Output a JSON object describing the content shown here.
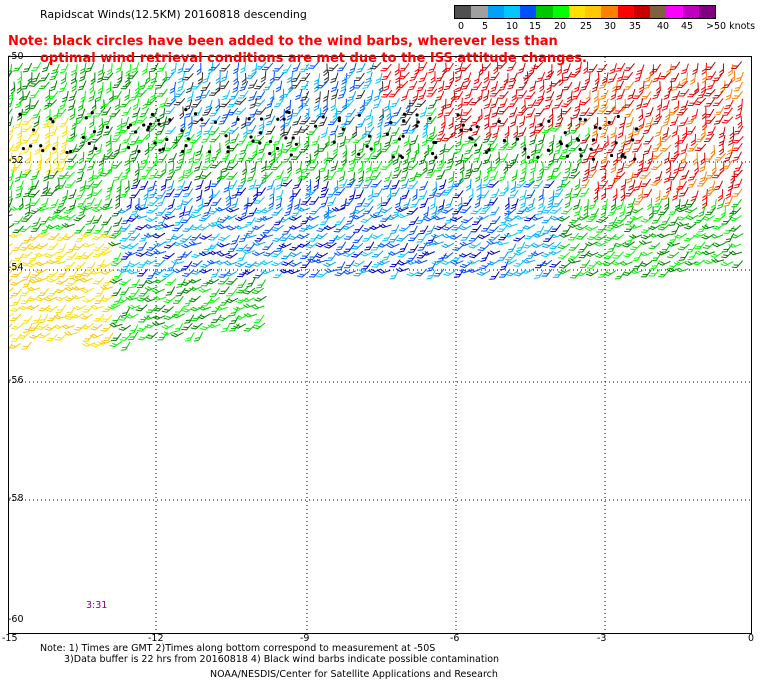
{
  "title": "Rapidscat Winds(12.5KM) 20160818 descending",
  "note": {
    "line1": "Note: black circles have been added to the wind barbs, wherever less than",
    "line2": "optimal wind retrieval conditions are met due to the ISS attitude changes."
  },
  "color_scale": {
    "colors": [
      "#505050",
      "#a0a0a0",
      "#00a0ff",
      "#00c8ff",
      "#0050ff",
      "#00c800",
      "#00ff00",
      "#ffe000",
      "#ffc800",
      "#ff8000",
      "#ff0000",
      "#c80000",
      "#806040",
      "#ff00ff",
      "#c000c0",
      "#800080"
    ],
    "labels": [
      {
        "text": "0",
        "pos": 4
      },
      {
        "text": "5",
        "pos": 28
      },
      {
        "text": "10",
        "pos": 52
      },
      {
        "text": "15",
        "pos": 75
      },
      {
        "text": "20",
        "pos": 100
      },
      {
        "text": "25",
        "pos": 126
      },
      {
        "text": "30",
        "pos": 150
      },
      {
        "text": "35",
        "pos": 175
      },
      {
        "text": "40",
        "pos": 203
      },
      {
        "text": "45",
        "pos": 227
      },
      {
        "text": ">50 knots",
        "pos": 252
      }
    ]
  },
  "axes": {
    "y_labels": [
      "-50",
      "-52",
      "-54",
      "-56",
      "-58",
      "-60"
    ],
    "x_labels": [
      "-15",
      "-12",
      "-9",
      "-6",
      "-3",
      "0"
    ],
    "lat_range": [
      -60,
      -50
    ],
    "lon_range": [
      -15,
      0
    ]
  },
  "time_tag": "3:31",
  "footer": {
    "line1": "Note: 1) Times are GMT 2)Times along bottom correspond to measurement at -50S",
    "line2": "3)Data buffer is 22 hrs from 20160818 4) Black wind barbs indicate possible contamination",
    "line3": "NOAA/NESDIS/Center for Satellite Applications and Research"
  }
}
